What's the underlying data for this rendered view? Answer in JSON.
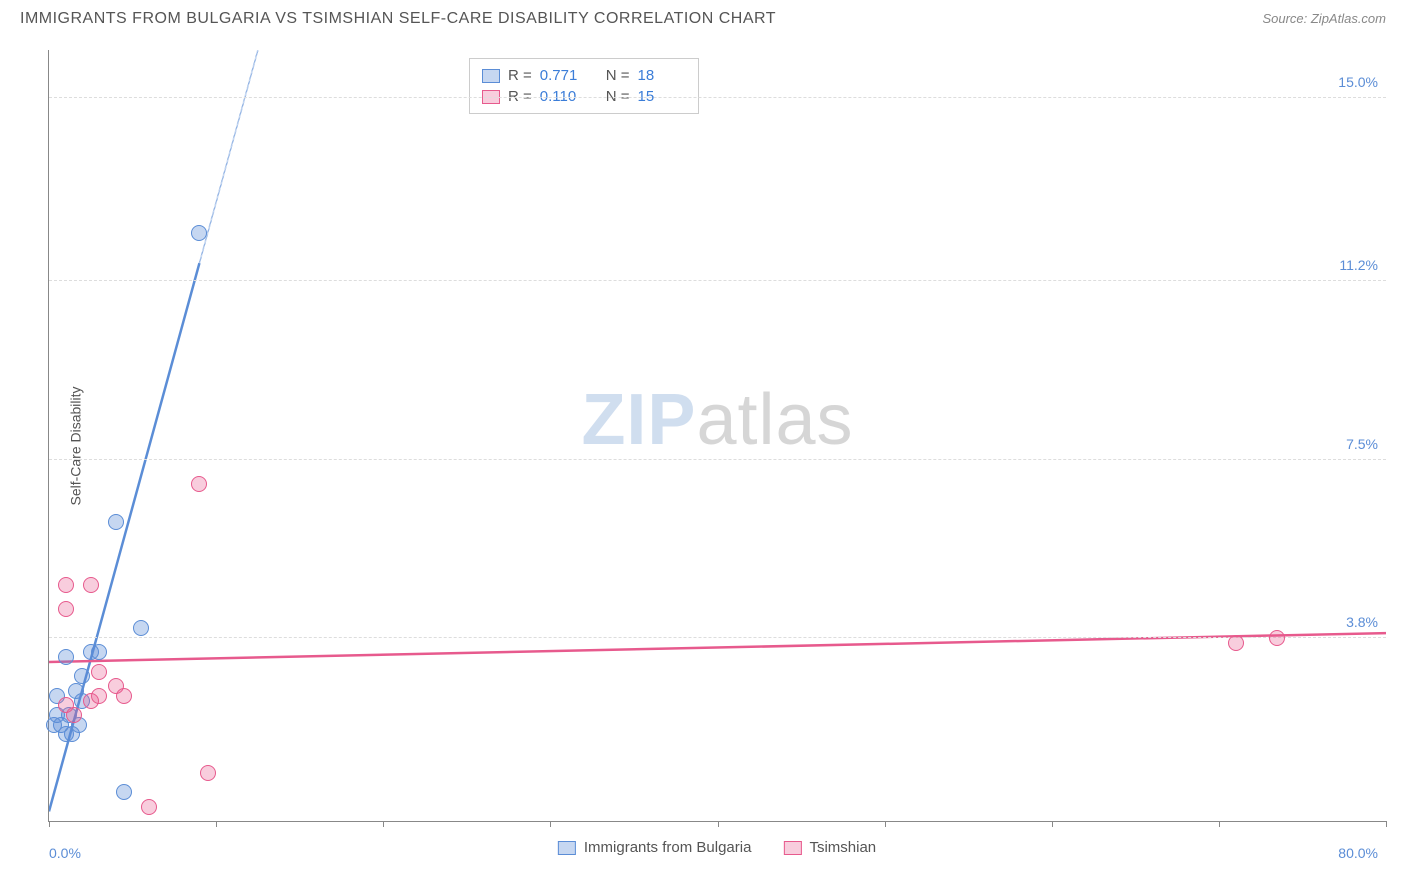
{
  "header": {
    "title": "IMMIGRANTS FROM BULGARIA VS TSIMSHIAN SELF-CARE DISABILITY CORRELATION CHART",
    "source_prefix": "Source: ",
    "source_name": "ZipAtlas.com"
  },
  "watermark": {
    "part1": "ZIP",
    "part2": "atlas"
  },
  "chart": {
    "type": "scatter",
    "y_label": "Self-Care Disability",
    "background_color": "#ffffff",
    "grid_color": "#dddddd",
    "xlim": [
      0,
      80
    ],
    "ylim": [
      0,
      16
    ],
    "x_min_label": "0.0%",
    "x_max_label": "80.0%",
    "x_ticks": [
      0,
      10,
      20,
      30,
      40,
      50,
      60,
      70,
      80
    ],
    "y_ticks": [
      {
        "value": 3.8,
        "label": "3.8%"
      },
      {
        "value": 7.5,
        "label": "7.5%"
      },
      {
        "value": 11.2,
        "label": "11.2%"
      },
      {
        "value": 15.0,
        "label": "15.0%"
      }
    ],
    "point_radius": 8,
    "point_fill_opacity": 0.35,
    "series": [
      {
        "key": "bulgaria",
        "label": "Immigrants from Bulgaria",
        "color": "#5b8dd6",
        "fill": "rgba(91,141,214,0.35)",
        "r": "0.771",
        "n": "18",
        "trend": {
          "x1": 0,
          "y1": 0.2,
          "x2": 12.5,
          "y2": 16.0,
          "solid_until_x": 9.0
        },
        "points": [
          {
            "x": 0.3,
            "y": 2.0
          },
          {
            "x": 0.5,
            "y": 2.2
          },
          {
            "x": 0.7,
            "y": 2.0
          },
          {
            "x": 0.5,
            "y": 2.6
          },
          {
            "x": 1.0,
            "y": 1.8
          },
          {
            "x": 1.2,
            "y": 2.2
          },
          {
            "x": 1.4,
            "y": 1.8
          },
          {
            "x": 1.8,
            "y": 2.0
          },
          {
            "x": 1.6,
            "y": 2.7
          },
          {
            "x": 2.0,
            "y": 2.5
          },
          {
            "x": 2.0,
            "y": 3.0
          },
          {
            "x": 1.0,
            "y": 3.4
          },
          {
            "x": 2.5,
            "y": 3.5
          },
          {
            "x": 3.0,
            "y": 3.5
          },
          {
            "x": 5.5,
            "y": 4.0
          },
          {
            "x": 4.0,
            "y": 6.2
          },
          {
            "x": 9.0,
            "y": 12.2
          },
          {
            "x": 4.5,
            "y": 0.6
          }
        ]
      },
      {
        "key": "tsimshian",
        "label": "Tsimshian",
        "color": "#e75a8d",
        "fill": "rgba(231,90,141,0.3)",
        "r": "0.110",
        "n": "15",
        "trend": {
          "x1": 0,
          "y1": 3.3,
          "x2": 80,
          "y2": 3.9,
          "solid_until_x": 80
        },
        "points": [
          {
            "x": 1.0,
            "y": 2.4
          },
          {
            "x": 1.5,
            "y": 2.2
          },
          {
            "x": 2.5,
            "y": 2.5
          },
          {
            "x": 3.0,
            "y": 2.6
          },
          {
            "x": 4.5,
            "y": 2.6
          },
          {
            "x": 3.0,
            "y": 3.1
          },
          {
            "x": 1.0,
            "y": 4.4
          },
          {
            "x": 1.0,
            "y": 4.9
          },
          {
            "x": 2.5,
            "y": 4.9
          },
          {
            "x": 9.0,
            "y": 7.0
          },
          {
            "x": 9.5,
            "y": 1.0
          },
          {
            "x": 6.0,
            "y": 0.3
          },
          {
            "x": 71.0,
            "y": 3.7
          },
          {
            "x": 73.5,
            "y": 3.8
          },
          {
            "x": 4.0,
            "y": 2.8
          }
        ]
      }
    ]
  },
  "legend_top": {
    "r_label": "R =",
    "n_label": "N ="
  }
}
